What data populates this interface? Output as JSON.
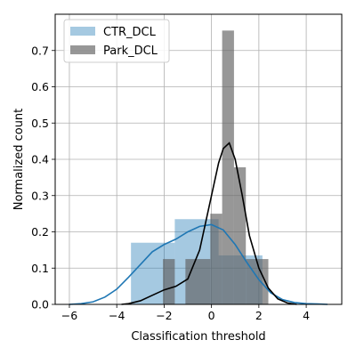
{
  "chart_data": {
    "type": "bar",
    "xlabel": "Classification threshold",
    "ylabel": "Normalized count",
    "xlim": [
      -6.6,
      5.5
    ],
    "ylim": [
      0,
      0.8
    ],
    "xticks": [
      -6,
      -4,
      -2,
      0,
      2,
      4
    ],
    "yticks": [
      0.0,
      0.1,
      0.2,
      0.3,
      0.4,
      0.5,
      0.6,
      0.7
    ],
    "grid": true,
    "legend_position": "top-left",
    "series": [
      {
        "name": "CTR_DCL",
        "color": "#1f77b4",
        "bar_opacity": 0.4,
        "bins": [
          {
            "x0": -3.4,
            "x1": -1.55,
            "y": 0.17
          },
          {
            "x0": -1.55,
            "x1": 0.3,
            "y": 0.235
          },
          {
            "x0": 0.3,
            "x1": 2.15,
            "y": 0.135
          }
        ],
        "kde": {
          "x": [
            -6.0,
            -5.5,
            -5.0,
            -4.5,
            -4.0,
            -3.5,
            -3.0,
            -2.5,
            -2.0,
            -1.5,
            -1.0,
            -0.5,
            0.0,
            0.5,
            1.0,
            1.5,
            2.0,
            2.5,
            3.0,
            3.5,
            4.0,
            4.5,
            4.9
          ],
          "y": [
            0.0,
            0.002,
            0.007,
            0.02,
            0.042,
            0.075,
            0.11,
            0.145,
            0.165,
            0.18,
            0.2,
            0.215,
            0.22,
            0.205,
            0.165,
            0.115,
            0.068,
            0.032,
            0.013,
            0.005,
            0.002,
            0.001,
            0.0
          ]
        }
      },
      {
        "name": "Park_DCL",
        "color": "#606060",
        "bar_opacity": 0.65,
        "bins": [
          {
            "x0": -2.05,
            "x1": -1.55,
            "y": 0.125
          },
          {
            "x0": -1.1,
            "x1": -0.05,
            "y": 0.125
          },
          {
            "x0": -0.05,
            "x1": 0.45,
            "y": 0.25
          },
          {
            "x0": 0.45,
            "x1": 0.95,
            "y": 0.755
          },
          {
            "x0": 0.95,
            "x1": 1.45,
            "y": 0.378
          },
          {
            "x0": 1.45,
            "x1": 2.4,
            "y": 0.125
          }
        ],
        "kde": {
          "color": "#000000",
          "x": [
            -3.8,
            -3.5,
            -3.0,
            -2.5,
            -2.0,
            -1.5,
            -1.0,
            -0.5,
            0.0,
            0.3,
            0.5,
            0.75,
            1.0,
            1.3,
            1.6,
            2.0,
            2.4,
            2.8,
            3.2,
            3.6
          ],
          "y": [
            0.0,
            0.002,
            0.01,
            0.025,
            0.04,
            0.05,
            0.07,
            0.15,
            0.3,
            0.39,
            0.43,
            0.445,
            0.4,
            0.3,
            0.19,
            0.1,
            0.045,
            0.015,
            0.004,
            0.0
          ]
        }
      }
    ]
  }
}
